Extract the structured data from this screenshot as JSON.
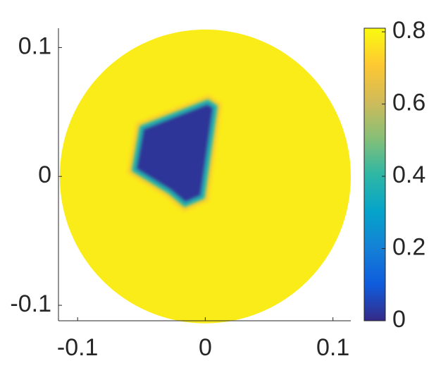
{
  "chart_data": {
    "type": "heatmap",
    "xlim": [
      -0.115,
      0.114
    ],
    "ylim": [
      -0.112,
      0.115
    ],
    "xticks": [
      -0.1,
      0,
      0.1
    ],
    "yticks": [
      -0.1,
      0,
      0.1
    ],
    "clim": [
      0,
      0.81
    ],
    "cticks": [
      0,
      0.2,
      0.4,
      0.6,
      0.8
    ],
    "colormap": [
      "#352a87",
      "#0f5cdd",
      "#1481d6",
      "#06a4ca",
      "#2eb7a4",
      "#87bf77",
      "#d1bb59",
      "#fec832",
      "#f9fb0e"
    ],
    "regions": [
      {
        "shape": "disk",
        "radius": 0.114,
        "value": 0.78
      },
      {
        "shape": "polygon",
        "x": [
          -0.05,
          0.002,
          0.008,
          -0.002,
          -0.016,
          -0.028,
          -0.056
        ],
        "y": [
          0.038,
          0.058,
          0.054,
          -0.016,
          -0.022,
          -0.012,
          0.005
        ],
        "value": 0.02
      }
    ]
  }
}
